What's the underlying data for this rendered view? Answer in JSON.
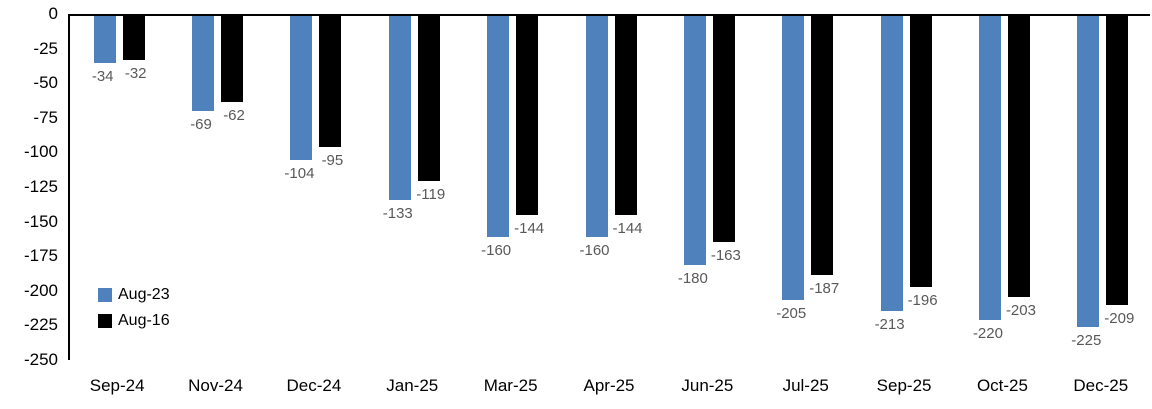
{
  "chart_data": {
    "type": "bar",
    "title": "",
    "xlabel": "",
    "ylabel": "",
    "categories": [
      "Sep-24",
      "Nov-24",
      "Dec-24",
      "Jan-25",
      "Mar-25",
      "Apr-25",
      "Jun-25",
      "Jul-25",
      "Sep-25",
      "Oct-25",
      "Dec-25"
    ],
    "series": [
      {
        "name": "Aug-23",
        "color": "#4F81BD",
        "values": [
          -34,
          -69,
          -104,
          -133,
          -160,
          -160,
          -180,
          -205,
          -213,
          -220,
          -225
        ]
      },
      {
        "name": "Aug-16",
        "color": "#000000",
        "values": [
          -32,
          -62,
          -95,
          -119,
          -144,
          -144,
          -163,
          -187,
          -196,
          -203,
          -209
        ]
      }
    ],
    "ylim": [
      -250,
      0
    ],
    "ytick_step": 25,
    "ytick_labels": [
      "0",
      "-25",
      "-50",
      "-75",
      "-100",
      "-125",
      "-150",
      "-175",
      "-200",
      "-225",
      "-250"
    ],
    "grid": false,
    "legend_position": "inside-bottom-left",
    "value_label_color": "#595959",
    "axis_color": "#000000"
  }
}
